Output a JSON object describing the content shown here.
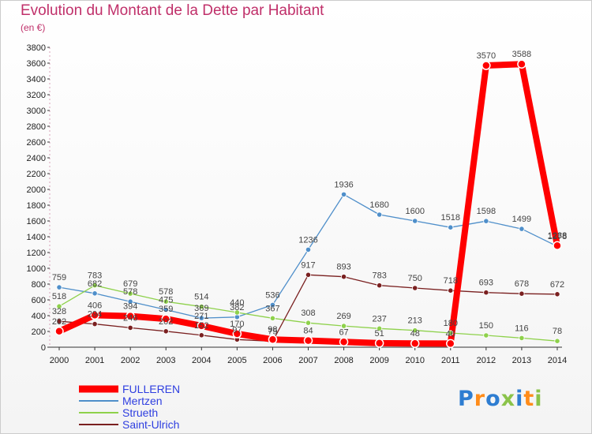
{
  "header": {
    "title": "Evolution du Montant de la Dette par Habitant",
    "unit": "(en €)"
  },
  "logo": {
    "text": "Proxiti",
    "colors": [
      "#2e7dd1",
      "#ff8c1a",
      "#2e7dd1",
      "#8bc34a",
      "#2e7dd1",
      "#ff8c1a",
      "#8bc34a"
    ]
  },
  "chart_data": {
    "type": "line",
    "title": "Evolution du Montant de la Dette par Habitant",
    "subtitle": "(en €)",
    "x": [
      "2000",
      "2001",
      "2002",
      "2003",
      "2004",
      "2005",
      "2006",
      "2007",
      "2008",
      "2009",
      "2010",
      "2011",
      "2012",
      "2013",
      "2014"
    ],
    "ylim": [
      0,
      3800
    ],
    "yticks": [
      0,
      200,
      400,
      600,
      800,
      1000,
      1200,
      1400,
      1600,
      1800,
      2000,
      2200,
      2400,
      2600,
      2800,
      3000,
      3200,
      3400,
      3600,
      3800
    ],
    "grid": false,
    "legend_position": "bottom-left",
    "series": [
      {
        "name": "FULLEREN",
        "color": "#ff0000",
        "values": [
          202,
          406,
          394,
          359,
          271,
          170,
          98,
          84,
          67,
          51,
          48,
          46,
          3570,
          3588,
          1288
        ],
        "labels": [
          "202",
          "406",
          "394",
          "359",
          "271",
          "170",
          "98",
          "84",
          "67",
          "51",
          "48",
          "46",
          "3570",
          "3588",
          "1288"
        ]
      },
      {
        "name": "Mertzen",
        "color": "#4f8fca",
        "values": [
          759,
          682,
          578,
          475,
          369,
          382,
          536,
          1236,
          1936,
          1680,
          1600,
          1518,
          1598,
          1499,
          1278
        ],
        "labels": [
          "759",
          "682",
          "578",
          "475",
          "369",
          "382",
          "536",
          "1236",
          "1936",
          "1680",
          "1600",
          "1518",
          "1598",
          "1499",
          "1278"
        ]
      },
      {
        "name": "Strueth",
        "color": "#8ed14b",
        "values": [
          518,
          783,
          679,
          578,
          514,
          440,
          367,
          308,
          269,
          237,
          213,
          180,
          150,
          116,
          78
        ],
        "labels": [
          "518",
          "783",
          "679",
          "578",
          "514",
          "440",
          "367",
          "308",
          "269",
          "237",
          "213",
          "180",
          "150",
          "116",
          "78"
        ]
      },
      {
        "name": "Saint-Ulrich",
        "color": "#7a2020",
        "values": [
          328,
          294,
          246,
          202,
          152,
          97,
          75,
          917,
          893,
          783,
          750,
          718,
          693,
          678,
          672
        ],
        "labels": [
          "328",
          "294",
          "246",
          "202",
          "152",
          "97",
          "75",
          "917",
          "893",
          "783",
          "750",
          "718",
          "693",
          "678",
          "672"
        ]
      }
    ]
  }
}
